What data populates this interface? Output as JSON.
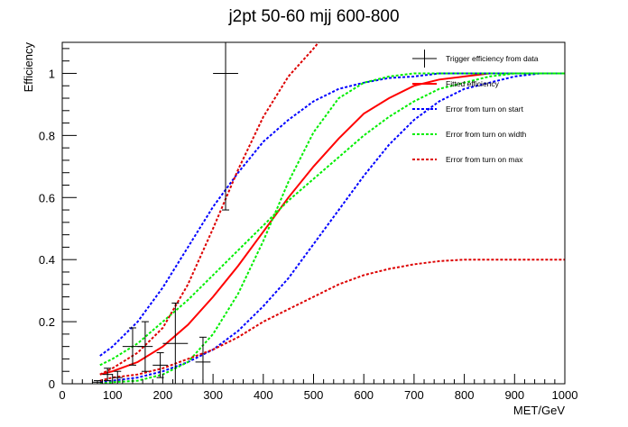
{
  "chart_data": {
    "type": "line",
    "title": "j2pt 50-60 mjj 600-800",
    "xlabel": "MET/GeV",
    "ylabel": "Efficiency",
    "xlim": [
      0,
      1000
    ],
    "ylim": [
      0,
      1.1
    ],
    "x_ticks": [
      0,
      100,
      200,
      300,
      400,
      500,
      600,
      700,
      800,
      900,
      1000
    ],
    "y_ticks": [
      0,
      0.2,
      0.4,
      0.6,
      0.8,
      1
    ],
    "x_tick_labels": [
      "0",
      "100",
      "200",
      "300",
      "400",
      "500",
      "600",
      "700",
      "800",
      "900",
      "1000"
    ],
    "y_tick_labels": [
      "0",
      "0.2",
      "0.4",
      "0.6",
      "0.8",
      "1"
    ],
    "legend_position": "top-right",
    "legend": [
      {
        "name": "Trigger efficiency from data",
        "style": "errorbar",
        "color": "#000000"
      },
      {
        "name": "Fitted efficiency",
        "style": "solid",
        "color": "#ff0000"
      },
      {
        "name": "Error from turn on start",
        "style": "dashed",
        "color": "#0000ff"
      },
      {
        "name": "Error from turn on width",
        "style": "dashed",
        "color": "#00ee00"
      },
      {
        "name": "Error from turn on max",
        "style": "dashed",
        "color": "#dd0000"
      }
    ],
    "data_points": [
      {
        "x": 10,
        "y": 0,
        "xerr": 10,
        "yerr": 0
      },
      {
        "x": 30,
        "y": 0,
        "xerr": 10,
        "yerr": 0
      },
      {
        "x": 50,
        "y": 0,
        "xerr": 10,
        "yerr": 0
      },
      {
        "x": 70,
        "y": 0.005,
        "xerr": 10,
        "yerr": 0.005
      },
      {
        "x": 90,
        "y": 0.03,
        "xerr": 10,
        "yerr": 0.02
      },
      {
        "x": 110,
        "y": 0.02,
        "xerr": 10,
        "yerr": 0.02
      },
      {
        "x": 140,
        "y": 0.12,
        "xerr": 20,
        "yerr": 0.06
      },
      {
        "x": 165,
        "y": 0.12,
        "xerr": 15,
        "yerr": 0.08
      },
      {
        "x": 195,
        "y": 0.06,
        "xerr": 15,
        "yerr": 0.04
      },
      {
        "x": 225,
        "y": 0.13,
        "xerr": 25,
        "yerr": 0.13
      },
      {
        "x": 280,
        "y": 0.07,
        "xerr": 15,
        "yerr": 0.08
      },
      {
        "x": 325,
        "y": 1.0,
        "xerr": 25,
        "yerr": 0.44
      }
    ],
    "series": [
      {
        "name": "Fitted efficiency",
        "color": "#ff0000",
        "dash": "solid",
        "x": [
          75,
          100,
          150,
          200,
          250,
          300,
          350,
          400,
          450,
          500,
          550,
          600,
          650,
          700,
          750,
          800,
          850,
          900,
          950,
          1000
        ],
        "y": [
          0.03,
          0.04,
          0.07,
          0.12,
          0.19,
          0.28,
          0.38,
          0.49,
          0.6,
          0.7,
          0.79,
          0.87,
          0.92,
          0.96,
          0.98,
          0.99,
          1.0,
          1.0,
          1.0,
          1.0
        ]
      },
      {
        "name": "Error from turn on start",
        "color": "#0000ff",
        "dash": "dashed",
        "x": [
          75,
          100,
          150,
          200,
          250,
          300,
          350,
          400,
          450,
          500,
          550,
          600,
          650,
          700,
          750,
          800,
          850,
          900,
          950,
          1000
        ],
        "y": [
          0.09,
          0.12,
          0.2,
          0.31,
          0.44,
          0.57,
          0.68,
          0.78,
          0.85,
          0.91,
          0.95,
          0.97,
          0.985,
          0.99,
          1.0,
          1.0,
          1.0,
          1.0,
          1.0,
          1.0
        ]
      },
      {
        "name": "Error from turn on start",
        "color": "#0000ff",
        "dash": "dashed",
        "x": [
          75,
          100,
          150,
          200,
          250,
          300,
          350,
          400,
          450,
          500,
          550,
          600,
          650,
          700,
          750,
          800,
          850,
          900,
          950,
          1000
        ],
        "y": [
          0.005,
          0.01,
          0.02,
          0.04,
          0.07,
          0.11,
          0.17,
          0.25,
          0.34,
          0.45,
          0.56,
          0.67,
          0.77,
          0.85,
          0.91,
          0.95,
          0.97,
          0.99,
          1.0,
          1.0
        ]
      },
      {
        "name": "Error from turn on width",
        "color": "#00ee00",
        "dash": "dashed",
        "x": [
          75,
          100,
          150,
          200,
          250,
          300,
          350,
          400,
          450,
          500,
          550,
          600,
          650,
          700,
          750,
          800,
          850,
          900,
          950,
          1000
        ],
        "y": [
          0.06,
          0.08,
          0.13,
          0.2,
          0.27,
          0.35,
          0.43,
          0.51,
          0.59,
          0.66,
          0.73,
          0.8,
          0.86,
          0.91,
          0.95,
          0.97,
          0.99,
          1.0,
          1.0,
          1.0
        ]
      },
      {
        "name": "Error from turn on width",
        "color": "#00ee00",
        "dash": "dashed",
        "x": [
          75,
          100,
          150,
          200,
          250,
          300,
          350,
          400,
          450,
          500,
          550,
          600,
          650,
          700,
          750,
          800,
          850,
          900,
          950,
          1000
        ],
        "y": [
          0.0,
          0.005,
          0.01,
          0.03,
          0.07,
          0.16,
          0.29,
          0.46,
          0.65,
          0.81,
          0.92,
          0.97,
          0.99,
          1.0,
          1.0,
          1.0,
          1.0,
          1.0,
          1.0,
          1.0
        ]
      },
      {
        "name": "Error from turn on max",
        "color": "#dd0000",
        "dash": "dashed",
        "x": [
          75,
          100,
          150,
          200,
          250,
          300,
          350,
          400,
          450,
          500,
          520
        ],
        "y": [
          0.03,
          0.05,
          0.1,
          0.18,
          0.32,
          0.5,
          0.69,
          0.86,
          0.99,
          1.08,
          1.12
        ]
      },
      {
        "name": "Error from turn on max",
        "color": "#dd0000",
        "dash": "dashed",
        "x": [
          75,
          100,
          150,
          200,
          250,
          300,
          350,
          400,
          450,
          500,
          550,
          600,
          650,
          700,
          750,
          800,
          850,
          900,
          950,
          1000
        ],
        "y": [
          0.01,
          0.02,
          0.03,
          0.05,
          0.08,
          0.11,
          0.15,
          0.2,
          0.24,
          0.28,
          0.32,
          0.35,
          0.37,
          0.385,
          0.395,
          0.4,
          0.4,
          0.4,
          0.4,
          0.4
        ]
      }
    ]
  }
}
